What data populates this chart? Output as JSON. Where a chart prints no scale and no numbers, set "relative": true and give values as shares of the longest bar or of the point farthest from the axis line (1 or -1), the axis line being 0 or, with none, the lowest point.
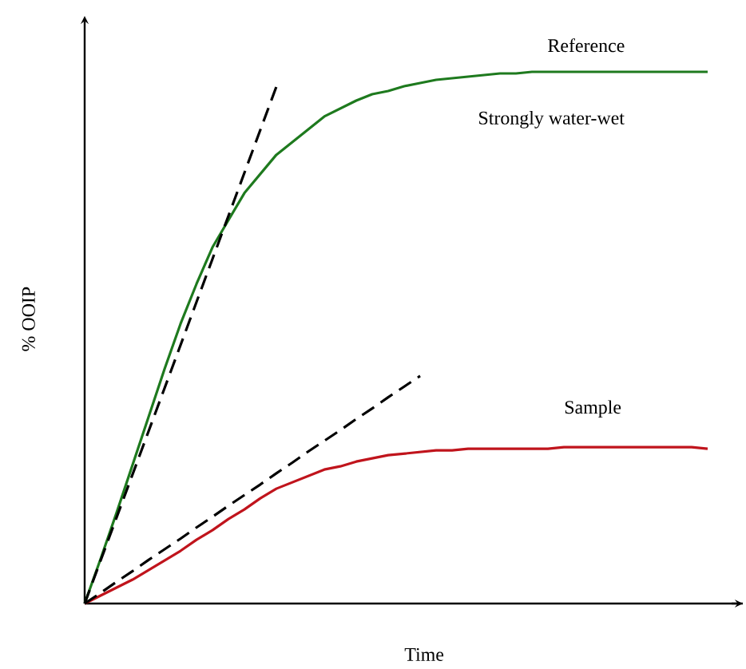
{
  "chart_data": {
    "type": "line",
    "relative": true,
    "xlabel": "Time",
    "ylabel": "% OOIP",
    "annotations": [
      "Strongly water-wet"
    ],
    "categories": [
      null,
      null,
      null,
      null,
      null,
      null,
      null,
      null,
      null,
      null,
      null,
      null,
      null,
      null,
      null,
      null,
      null,
      null,
      null,
      null,
      null,
      null,
      null,
      null,
      null,
      null,
      null,
      null,
      null,
      null,
      null,
      null,
      null,
      null,
      null,
      null,
      null,
      null,
      null,
      null
    ],
    "series": [
      {
        "name": "Reference",
        "color": "#1e7a1e",
        "line_style": "solid",
        "values": [
          0,
          0.084,
          0.171,
          0.261,
          0.351,
          0.441,
          0.526,
          0.601,
          0.67,
          0.721,
          0.772,
          0.808,
          0.844,
          0.868,
          0.892,
          0.916,
          0.931,
          0.946,
          0.958,
          0.964,
          0.973,
          0.979,
          0.985,
          0.988,
          0.991,
          0.994,
          0.997,
          0.997,
          1,
          1,
          1,
          1,
          1,
          1,
          1,
          1,
          1,
          1,
          1,
          1
        ]
      },
      {
        "name": "Sample",
        "color": "#c0141c",
        "line_style": "solid",
        "values": [
          0,
          0.015,
          0.03,
          0.045,
          0.063,
          0.081,
          0.099,
          0.12,
          0.138,
          0.159,
          0.177,
          0.198,
          0.216,
          0.228,
          0.24,
          0.252,
          0.258,
          0.267,
          0.273,
          0.279,
          0.282,
          0.285,
          0.288,
          0.288,
          0.291,
          0.291,
          0.291,
          0.291,
          0.291,
          0.291,
          0.294,
          0.294,
          0.294,
          0.294,
          0.294,
          0.294,
          0.294,
          0.294,
          0.294,
          0.291
        ]
      },
      {
        "color": "#000000",
        "line_style": "dashed",
        "values": [
          0,
          0.081,
          0.162,
          0.243,
          0.324,
          0.405,
          0.486,
          0.567,
          0.648,
          0.729,
          0.81,
          0.891,
          0.972,
          null,
          null,
          null,
          null,
          null,
          null,
          null,
          null,
          null,
          null,
          null,
          null,
          null,
          null,
          null,
          null,
          null,
          null,
          null,
          null,
          null,
          null,
          null,
          null,
          null,
          null,
          null
        ]
      },
      {
        "color": "#000000",
        "line_style": "dashed",
        "values": [
          0,
          0.02,
          0.041,
          0.061,
          0.082,
          0.102,
          0.122,
          0.143,
          0.163,
          0.184,
          0.204,
          0.224,
          0.245,
          0.265,
          0.286,
          0.306,
          0.326,
          0.347,
          0.367,
          0.388,
          0.408,
          0.428,
          null,
          null,
          null,
          null,
          null,
          null,
          null,
          null,
          null,
          null,
          null,
          null,
          null,
          null,
          null,
          null,
          null,
          null
        ]
      }
    ]
  }
}
